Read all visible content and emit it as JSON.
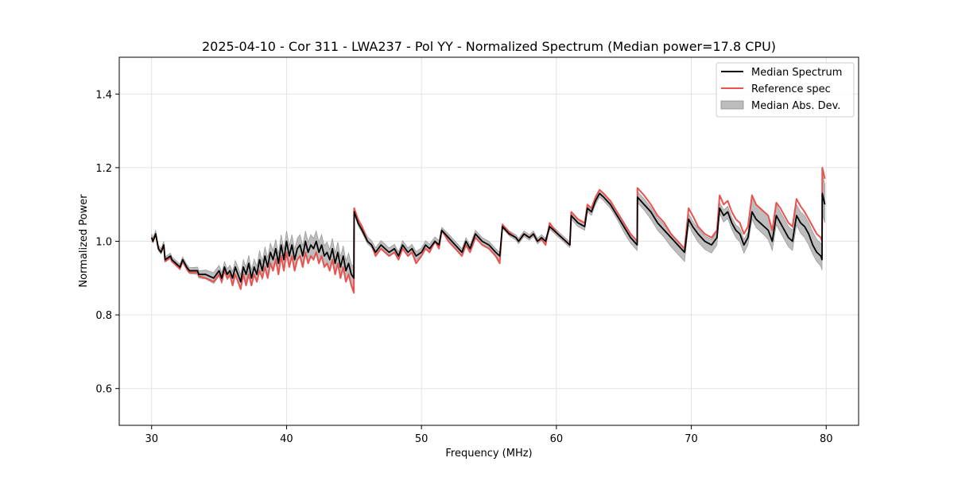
{
  "chart_data": {
    "type": "line",
    "title": "2025-04-10 - Cor 311 - LWA237 - Pol YY - Normalized Spectrum (Median power=17.8 CPU)",
    "xlabel": "Frequency (MHz)",
    "ylabel": "Normalized Power",
    "xlim": [
      27.6,
      82.4
    ],
    "ylim": [
      0.5,
      1.5
    ],
    "xticks": [
      30,
      40,
      50,
      60,
      70,
      80
    ],
    "yticks": [
      0.6,
      0.8,
      1.0,
      1.2,
      1.4
    ],
    "xtick_labels": [
      "30",
      "40",
      "50",
      "60",
      "70",
      "80"
    ],
    "ytick_labels": [
      "0.6",
      "0.8",
      "1.0",
      "1.2",
      "1.4"
    ],
    "grid": true,
    "legend_position": "top-right",
    "legend": {
      "median": "Median Spectrum",
      "reference": "Reference spec",
      "mad": "Median Abs. Dev."
    },
    "colors": {
      "median": "#000000",
      "reference": "#e8524f",
      "band": "#bdbdbd",
      "band_edge": "#8c8c8c",
      "grid": "#e3e3e3"
    },
    "series": [
      {
        "name": "Median Spectrum",
        "x": [
          30.0,
          30.1,
          30.3,
          30.5,
          30.7,
          30.9,
          31.0,
          31.4,
          31.5,
          32.1,
          32.3,
          32.6,
          32.8,
          33.4,
          33.5,
          34.0,
          34.6,
          35.0,
          35.2,
          35.4,
          35.6,
          35.8,
          36.0,
          36.2,
          36.4,
          36.6,
          36.8,
          37.0,
          37.2,
          37.4,
          37.6,
          37.8,
          38.0,
          38.2,
          38.4,
          38.6,
          38.8,
          39.0,
          39.2,
          39.4,
          39.6,
          39.8,
          40.0,
          40.2,
          40.4,
          40.6,
          40.8,
          41.0,
          41.2,
          41.4,
          41.6,
          41.8,
          42.0,
          42.2,
          42.4,
          42.6,
          42.8,
          43.0,
          43.2,
          43.4,
          43.6,
          43.8,
          44.0,
          44.2,
          44.4,
          44.6,
          44.8,
          44.99,
          45.01,
          45.3,
          45.6,
          46.0,
          46.3,
          46.6,
          47.0,
          47.3,
          47.6,
          48.0,
          48.3,
          48.6,
          49.0,
          49.3,
          49.6,
          50.0,
          50.3,
          50.6,
          51.0,
          51.3,
          51.5,
          52.0,
          52.5,
          53.0,
          53.3,
          53.6,
          54.0,
          54.5,
          55.0,
          55.5,
          55.8,
          56.0,
          56.5,
          57.0,
          57.2,
          57.6,
          58.0,
          58.3,
          58.6,
          58.9,
          59.2,
          59.5,
          59.8,
          60.1,
          60.4,
          60.7,
          61.0,
          61.1,
          61.6,
          62.1,
          62.3,
          62.6,
          62.9,
          63.2,
          63.5,
          64.0,
          64.5,
          65.0,
          65.5,
          65.99,
          66.01,
          66.5,
          67.0,
          67.5,
          68.0,
          68.5,
          69.0,
          69.5,
          69.8,
          70.1,
          70.5,
          71.0,
          71.5,
          71.9,
          72.1,
          72.4,
          72.7,
          73.0,
          73.3,
          73.6,
          73.9,
          74.2,
          74.5,
          74.8,
          75.1,
          75.4,
          75.7,
          76.0,
          76.3,
          76.6,
          76.9,
          77.2,
          77.5,
          77.8,
          78.1,
          78.4,
          78.7,
          79.0,
          79.3,
          79.6,
          79.69,
          79.71,
          79.9
        ],
        "y": [
          1.01,
          1.0,
          1.02,
          0.98,
          0.97,
          0.99,
          0.95,
          0.96,
          0.95,
          0.93,
          0.95,
          0.93,
          0.92,
          0.92,
          0.91,
          0.91,
          0.9,
          0.92,
          0.9,
          0.93,
          0.91,
          0.92,
          0.9,
          0.93,
          0.91,
          0.89,
          0.93,
          0.91,
          0.94,
          0.9,
          0.93,
          0.91,
          0.95,
          0.92,
          0.96,
          0.93,
          0.97,
          0.95,
          0.98,
          0.94,
          0.99,
          0.95,
          1.0,
          0.96,
          0.99,
          0.95,
          0.98,
          0.99,
          0.96,
          1.0,
          0.97,
          0.99,
          0.98,
          1.0,
          0.97,
          0.99,
          0.96,
          0.97,
          0.95,
          0.98,
          0.94,
          0.97,
          0.93,
          0.96,
          0.92,
          0.94,
          0.91,
          0.9,
          1.08,
          1.05,
          1.03,
          1.0,
          0.99,
          0.97,
          0.99,
          0.98,
          0.97,
          0.98,
          0.96,
          0.99,
          0.97,
          0.98,
          0.96,
          0.97,
          0.99,
          0.98,
          1.0,
          0.99,
          1.03,
          1.01,
          0.99,
          0.97,
          1.0,
          0.98,
          1.02,
          1.0,
          0.99,
          0.97,
          0.96,
          1.04,
          1.02,
          1.01,
          1.0,
          1.02,
          1.01,
          1.02,
          1.0,
          1.01,
          1.0,
          1.04,
          1.03,
          1.02,
          1.01,
          1.0,
          0.99,
          1.07,
          1.05,
          1.04,
          1.09,
          1.08,
          1.11,
          1.13,
          1.12,
          1.1,
          1.07,
          1.04,
          1.01,
          0.99,
          1.12,
          1.1,
          1.08,
          1.05,
          1.03,
          1.01,
          0.99,
          0.97,
          1.06,
          1.04,
          1.02,
          1.0,
          0.99,
          1.01,
          1.09,
          1.07,
          1.08,
          1.05,
          1.03,
          1.02,
          0.99,
          1.01,
          1.08,
          1.06,
          1.05,
          1.04,
          1.03,
          1.0,
          1.07,
          1.05,
          1.03,
          1.01,
          1.0,
          1.07,
          1.05,
          1.04,
          1.02,
          0.99,
          0.97,
          0.96,
          0.95,
          1.13,
          1.1
        ]
      },
      {
        "name": "Reference spec",
        "x": [
          30.0,
          30.1,
          30.3,
          30.5,
          30.7,
          30.9,
          31.0,
          31.4,
          31.5,
          32.1,
          32.3,
          32.6,
          32.8,
          33.4,
          33.5,
          34.0,
          34.6,
          35.0,
          35.2,
          35.4,
          35.6,
          35.8,
          36.0,
          36.2,
          36.4,
          36.6,
          36.8,
          37.0,
          37.2,
          37.4,
          37.6,
          37.8,
          38.0,
          38.2,
          38.4,
          38.6,
          38.8,
          39.0,
          39.2,
          39.4,
          39.6,
          39.8,
          40.0,
          40.2,
          40.4,
          40.6,
          40.8,
          41.0,
          41.2,
          41.4,
          41.6,
          41.8,
          42.0,
          42.2,
          42.4,
          42.6,
          42.8,
          43.0,
          43.2,
          43.4,
          43.6,
          43.8,
          44.0,
          44.2,
          44.4,
          44.6,
          44.8,
          44.99,
          45.01,
          45.3,
          45.6,
          46.0,
          46.3,
          46.6,
          47.0,
          47.3,
          47.6,
          48.0,
          48.3,
          48.6,
          49.0,
          49.3,
          49.6,
          50.0,
          50.3,
          50.6,
          51.0,
          51.3,
          51.5,
          52.0,
          52.5,
          53.0,
          53.3,
          53.6,
          54.0,
          54.5,
          55.0,
          55.5,
          55.8,
          56.0,
          56.5,
          57.0,
          57.2,
          57.6,
          58.0,
          58.3,
          58.6,
          58.9,
          59.2,
          59.5,
          59.8,
          60.1,
          60.4,
          60.7,
          61.0,
          61.1,
          61.6,
          62.1,
          62.3,
          62.6,
          62.9,
          63.2,
          63.5,
          64.0,
          64.5,
          65.0,
          65.5,
          65.99,
          66.01,
          66.5,
          67.0,
          67.5,
          68.0,
          68.5,
          69.0,
          69.5,
          69.8,
          70.1,
          70.5,
          71.0,
          71.5,
          71.9,
          72.1,
          72.4,
          72.7,
          73.0,
          73.3,
          73.6,
          73.9,
          74.2,
          74.5,
          74.8,
          75.1,
          75.4,
          75.7,
          76.0,
          76.3,
          76.6,
          76.9,
          77.2,
          77.5,
          77.8,
          78.1,
          78.4,
          78.7,
          79.0,
          79.3,
          79.6,
          79.69,
          79.71,
          79.9
        ],
        "y": [
          1.0,
          1.0,
          1.02,
          0.98,
          0.97,
          0.99,
          0.945,
          0.955,
          0.945,
          0.925,
          0.945,
          0.925,
          0.915,
          0.915,
          0.905,
          0.9,
          0.89,
          0.91,
          0.89,
          0.92,
          0.9,
          0.91,
          0.88,
          0.91,
          0.89,
          0.87,
          0.91,
          0.88,
          0.91,
          0.88,
          0.91,
          0.89,
          0.92,
          0.9,
          0.93,
          0.9,
          0.94,
          0.92,
          0.95,
          0.91,
          0.96,
          0.92,
          0.97,
          0.93,
          0.96,
          0.92,
          0.95,
          0.96,
          0.93,
          0.97,
          0.94,
          0.96,
          0.95,
          0.97,
          0.94,
          0.96,
          0.93,
          0.94,
          0.92,
          0.95,
          0.91,
          0.94,
          0.9,
          0.93,
          0.89,
          0.91,
          0.88,
          0.86,
          1.09,
          1.06,
          1.04,
          1.0,
          0.99,
          0.96,
          0.98,
          0.97,
          0.96,
          0.97,
          0.95,
          0.98,
          0.96,
          0.97,
          0.94,
          0.96,
          0.98,
          0.97,
          1.0,
          0.98,
          1.03,
          1.0,
          0.98,
          0.96,
          0.99,
          0.97,
          1.01,
          0.99,
          0.98,
          0.96,
          0.94,
          1.045,
          1.025,
          1.01,
          1.0,
          1.02,
          1.01,
          1.02,
          1.0,
          1.005,
          0.99,
          1.05,
          1.035,
          1.02,
          1.01,
          1.0,
          0.99,
          1.08,
          1.06,
          1.05,
          1.1,
          1.09,
          1.12,
          1.14,
          1.13,
          1.11,
          1.08,
          1.05,
          1.02,
          1.0,
          1.145,
          1.125,
          1.1,
          1.07,
          1.05,
          1.02,
          1.0,
          0.98,
          1.09,
          1.07,
          1.04,
          1.02,
          1.01,
          1.03,
          1.125,
          1.1,
          1.11,
          1.08,
          1.06,
          1.05,
          1.02,
          1.04,
          1.125,
          1.1,
          1.09,
          1.08,
          1.07,
          1.03,
          1.105,
          1.09,
          1.07,
          1.05,
          1.04,
          1.115,
          1.095,
          1.08,
          1.06,
          1.04,
          1.02,
          1.01,
          1.0,
          1.2,
          1.17
        ]
      }
    ],
    "band": {
      "name": "Median Abs. Dev.",
      "x": [
        30.0,
        30.1,
        30.3,
        30.5,
        30.7,
        30.9,
        31.0,
        31.4,
        31.5,
        32.1,
        32.3,
        32.6,
        32.8,
        33.4,
        33.5,
        34.0,
        34.6,
        35.0,
        35.2,
        35.4,
        35.6,
        35.8,
        36.0,
        36.2,
        36.4,
        36.6,
        36.8,
        37.0,
        37.2,
        37.4,
        37.6,
        37.8,
        38.0,
        38.2,
        38.4,
        38.6,
        38.8,
        39.0,
        39.2,
        39.4,
        39.6,
        39.8,
        40.0,
        40.2,
        40.4,
        40.6,
        40.8,
        41.0,
        41.2,
        41.4,
        41.6,
        41.8,
        42.0,
        42.2,
        42.4,
        42.6,
        42.8,
        43.0,
        43.2,
        43.4,
        43.6,
        43.8,
        44.0,
        44.2,
        44.4,
        44.6,
        44.8,
        44.99,
        45.01,
        45.3,
        45.6,
        46.0,
        46.3,
        46.6,
        47.0,
        47.3,
        47.6,
        48.0,
        48.3,
        48.6,
        49.0,
        49.3,
        49.6,
        50.0,
        50.3,
        50.6,
        51.0,
        51.3,
        51.5,
        52.0,
        52.5,
        53.0,
        53.3,
        53.6,
        54.0,
        54.5,
        55.0,
        55.5,
        55.8,
        56.0,
        56.5,
        57.0,
        57.2,
        57.6,
        58.0,
        58.3,
        58.6,
        58.9,
        59.2,
        59.5,
        59.8,
        60.1,
        60.4,
        60.7,
        61.0,
        61.1,
        61.6,
        62.1,
        62.3,
        62.6,
        62.9,
        63.2,
        63.5,
        64.0,
        64.5,
        65.0,
        65.5,
        65.99,
        66.01,
        66.5,
        67.0,
        67.5,
        68.0,
        68.5,
        69.0,
        69.5,
        69.8,
        70.1,
        70.5,
        71.0,
        71.5,
        71.9,
        72.1,
        72.4,
        72.7,
        73.0,
        73.3,
        73.6,
        73.9,
        74.2,
        74.5,
        74.8,
        75.1,
        75.4,
        75.7,
        76.0,
        76.3,
        76.6,
        76.9,
        77.2,
        77.5,
        77.8,
        78.1,
        78.4,
        78.7,
        79.0,
        79.3,
        79.6,
        79.69,
        79.71,
        79.9
      ],
      "lower": [
        1.005,
        0.995,
        1.015,
        0.975,
        0.965,
        0.985,
        0.945,
        0.955,
        0.945,
        0.922,
        0.942,
        0.922,
        0.912,
        0.91,
        0.9,
        0.898,
        0.885,
        0.905,
        0.885,
        0.915,
        0.895,
        0.905,
        0.882,
        0.912,
        0.89,
        0.87,
        0.91,
        0.89,
        0.918,
        0.878,
        0.908,
        0.888,
        0.925,
        0.895,
        0.935,
        0.905,
        0.945,
        0.925,
        0.955,
        0.915,
        0.962,
        0.922,
        0.972,
        0.932,
        0.962,
        0.922,
        0.952,
        0.962,
        0.932,
        0.972,
        0.942,
        0.962,
        0.952,
        0.972,
        0.942,
        0.962,
        0.932,
        0.942,
        0.922,
        0.952,
        0.912,
        0.942,
        0.902,
        0.932,
        0.892,
        0.912,
        0.882,
        0.87,
        1.075,
        1.043,
        1.023,
        0.993,
        0.983,
        0.962,
        0.982,
        0.972,
        0.962,
        0.972,
        0.952,
        0.982,
        0.962,
        0.972,
        0.947,
        0.962,
        0.982,
        0.972,
        0.995,
        0.983,
        1.025,
        1.003,
        0.983,
        0.962,
        0.992,
        0.972,
        1.012,
        0.992,
        0.982,
        0.962,
        0.945,
        1.035,
        1.015,
        1.003,
        0.993,
        1.013,
        1.003,
        1.013,
        0.993,
        1.002,
        0.992,
        1.033,
        1.023,
        1.013,
        1.003,
        0.993,
        0.983,
        1.06,
        1.04,
        1.03,
        1.08,
        1.07,
        1.1,
        1.12,
        1.11,
        1.09,
        1.06,
        1.025,
        0.995,
        0.975,
        1.105,
        1.085,
        1.06,
        1.03,
        1.01,
        0.985,
        0.965,
        0.945,
        1.045,
        1.022,
        0.998,
        0.978,
        0.968,
        0.99,
        1.075,
        1.052,
        1.062,
        1.032,
        1.01,
        0.998,
        0.968,
        0.99,
        1.06,
        1.038,
        1.027,
        1.017,
        1.005,
        0.975,
        1.045,
        1.025,
        1.005,
        0.985,
        0.975,
        1.045,
        1.022,
        1.01,
        0.99,
        0.965,
        0.945,
        0.932,
        0.922,
        1.075,
        1.05
      ],
      "upper": [
        1.02,
        1.01,
        1.03,
        0.99,
        0.98,
        1.0,
        0.958,
        0.968,
        0.958,
        0.938,
        0.958,
        0.938,
        0.928,
        0.93,
        0.92,
        0.922,
        0.915,
        0.935,
        0.915,
        0.945,
        0.925,
        0.935,
        0.918,
        0.948,
        0.93,
        0.91,
        0.95,
        0.93,
        0.962,
        0.922,
        0.952,
        0.932,
        0.975,
        0.945,
        0.985,
        0.955,
        0.995,
        0.975,
        1.005,
        0.965,
        1.018,
        0.978,
        1.028,
        0.988,
        1.018,
        0.978,
        1.008,
        1.018,
        0.988,
        1.028,
        0.998,
        1.018,
        1.008,
        1.028,
        0.998,
        1.018,
        0.988,
        0.998,
        0.978,
        1.008,
        0.968,
        0.998,
        0.958,
        0.988,
        0.948,
        0.968,
        0.938,
        0.93,
        1.092,
        1.062,
        1.042,
        1.012,
        1.002,
        0.982,
        1.002,
        0.992,
        0.982,
        0.992,
        0.972,
        1.002,
        0.982,
        0.992,
        0.972,
        0.982,
        1.002,
        0.992,
        1.012,
        1.002,
        1.038,
        1.02,
        1.0,
        0.98,
        1.01,
        0.99,
        1.03,
        1.01,
        1.0,
        0.98,
        0.97,
        1.048,
        1.028,
        1.018,
        1.008,
        1.028,
        1.018,
        1.028,
        1.008,
        1.018,
        1.008,
        1.048,
        1.038,
        1.028,
        1.018,
        1.008,
        0.998,
        1.08,
        1.06,
        1.05,
        1.1,
        1.09,
        1.12,
        1.14,
        1.13,
        1.11,
        1.08,
        1.052,
        1.022,
        1.002,
        1.135,
        1.115,
        1.092,
        1.064,
        1.044,
        1.022,
        1.002,
        0.982,
        1.075,
        1.055,
        1.035,
        1.015,
        1.005,
        1.025,
        1.105,
        1.085,
        1.095,
        1.065,
        1.045,
        1.035,
        1.005,
        1.025,
        1.12,
        1.1,
        1.09,
        1.08,
        1.07,
        1.035,
        1.1,
        1.08,
        1.06,
        1.04,
        1.03,
        1.1,
        1.08,
        1.07,
        1.05,
        1.025,
        1.005,
        0.995,
        0.985,
        1.185,
        1.155
      ]
    }
  }
}
